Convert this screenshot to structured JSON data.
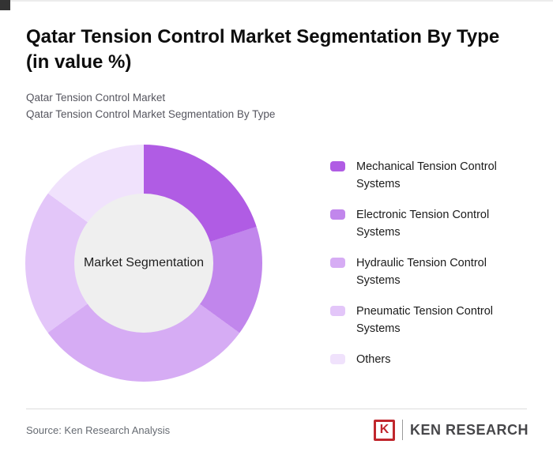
{
  "page": {
    "title_line1": "Qatar Tension Control Market Segmentation By Type",
    "title_line2": "(in value %)",
    "subtitle1": "Qatar Tension Control Market",
    "subtitle2": "Qatar Tension Control Market Segmentation By Type",
    "source": "Source: Ken Research Analysis",
    "logo": {
      "k": "K",
      "text": "KEN RESEARCH"
    }
  },
  "chart_data": {
    "type": "pie",
    "donut": true,
    "title": "Qatar Tension Control Market Segmentation By Type (in value %)",
    "center_label": "Market Segmentation",
    "legend_position": "right",
    "start_angle_deg": 0,
    "center_color": "#efefef",
    "segments": [
      {
        "label": "Mechanical Tension Control Systems",
        "value": 20,
        "color": "#b05ce4"
      },
      {
        "label": "Electronic Tension Control Systems",
        "value": 15,
        "color": "#c186ec"
      },
      {
        "label": "Hydraulic Tension Control Systems",
        "value": 30,
        "color": "#d6acf4"
      },
      {
        "label": "Pneumatic Tension Control Systems",
        "value": 20,
        "color": "#e3c6f9"
      },
      {
        "label": "Others",
        "value": 15,
        "color": "#f0e2fc"
      }
    ]
  }
}
